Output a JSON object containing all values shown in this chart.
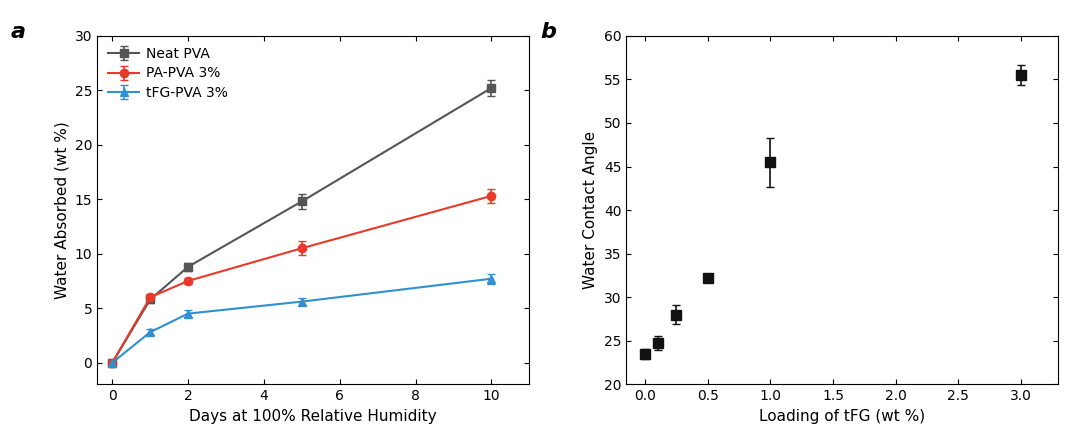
{
  "panel_a": {
    "xlabel": "Days at 100% Relative Humidity",
    "ylabel": "Water Absorbed (wt %)",
    "xlim": [
      -0.4,
      11
    ],
    "ylim": [
      -2,
      30
    ],
    "xticks": [
      0,
      2,
      4,
      6,
      8,
      10
    ],
    "yticks": [
      0,
      5,
      10,
      15,
      20,
      25,
      30
    ],
    "series": [
      {
        "label": "Neat PVA",
        "color": "#555555",
        "marker": "s",
        "x": [
          0,
          1,
          2,
          5,
          10
        ],
        "y": [
          0,
          5.8,
          8.8,
          14.8,
          25.2
        ],
        "yerr": [
          0.15,
          0.3,
          0.35,
          0.7,
          0.7
        ]
      },
      {
        "label": "PA-PVA 3%",
        "color": "#e8392a",
        "marker": "o",
        "x": [
          0,
          1,
          2,
          5,
          10
        ],
        "y": [
          0,
          6.0,
          7.5,
          10.5,
          15.3
        ],
        "yerr": [
          0.15,
          0.3,
          0.3,
          0.65,
          0.65
        ]
      },
      {
        "label": "tFG-PVA 3%",
        "color": "#3090d0",
        "marker": "^",
        "x": [
          0,
          1,
          2,
          5,
          10
        ],
        "y": [
          0,
          2.8,
          4.5,
          5.6,
          7.7
        ],
        "yerr": [
          0.15,
          0.25,
          0.3,
          0.3,
          0.45
        ]
      }
    ]
  },
  "panel_b": {
    "xlabel": "Loading of tFG (wt %)",
    "ylabel": "Water Contact Angle",
    "xlim": [
      -0.15,
      3.3
    ],
    "ylim": [
      20,
      60
    ],
    "xticks": [
      0.0,
      0.5,
      1.0,
      1.5,
      2.0,
      2.5,
      3.0
    ],
    "yticks": [
      20,
      25,
      30,
      35,
      40,
      45,
      50,
      55,
      60
    ],
    "x": [
      0.0,
      0.1,
      0.25,
      0.5,
      1.0,
      3.0
    ],
    "y": [
      23.5,
      24.8,
      28.0,
      32.2,
      45.5,
      55.5
    ],
    "yerr": [
      0.6,
      0.8,
      1.1,
      0.5,
      2.8,
      1.2
    ],
    "color": "#111111",
    "marker": "s"
  }
}
